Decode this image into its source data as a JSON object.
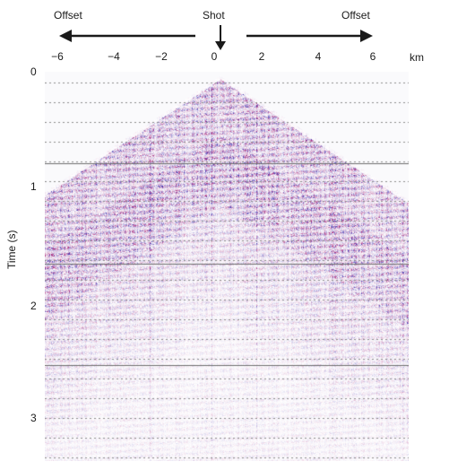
{
  "figure": {
    "direction_labels": {
      "left": "Offset",
      "center": "Shot",
      "right": "Offset"
    },
    "x_axis": {
      "unit": "km",
      "ticks": [
        "−6",
        "−4",
        "−2",
        "0",
        "2",
        "4",
        "6"
      ]
    },
    "y_axis": {
      "label": "Time (s)",
      "ticks": [
        "0",
        "1",
        "2",
        "3"
      ]
    },
    "colors": {
      "seismic_trace": "#b0306a",
      "arrow": "#1a1a1a",
      "gridline": "#888888"
    }
  }
}
